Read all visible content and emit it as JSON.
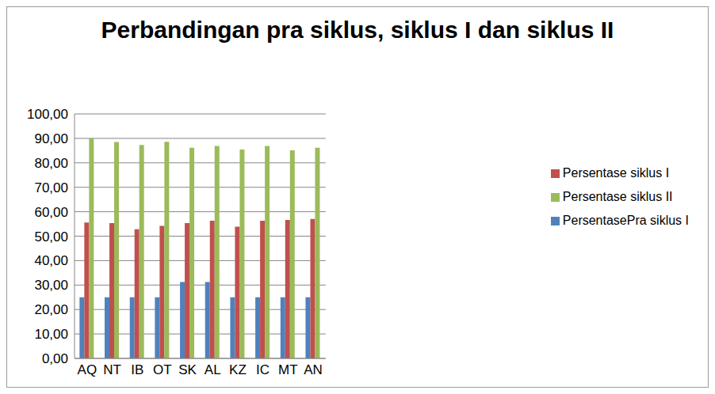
{
  "chart_data": {
    "type": "bar",
    "title": "Perbandingan pra siklus, siklus I dan siklus II",
    "categories": [
      "AQ",
      "NT",
      "IB",
      "OT",
      "SK",
      "AL",
      "KZ",
      "IC",
      "MT",
      "AN"
    ],
    "series": [
      {
        "name": "PersentasePra siklus I",
        "color": "#4f81bd",
        "values": [
          25,
          25,
          25,
          25,
          31.25,
          31.25,
          25,
          25,
          25,
          25
        ]
      },
      {
        "name": "Persentase siklus I",
        "color": "#c0504d",
        "values": [
          55.6,
          55.3,
          52.8,
          54.2,
          55.3,
          56.3,
          53.9,
          56.3,
          56.6,
          57
        ]
      },
      {
        "name": "Persentase siklus II",
        "color": "#9bbb59",
        "values": [
          90,
          88.5,
          87.3,
          88.6,
          86.2,
          86.9,
          85.4,
          86.9,
          85.1,
          86.2
        ]
      }
    ],
    "ylim": [
      0,
      100
    ],
    "yticks": [
      {
        "value": 0,
        "label": "0,00"
      },
      {
        "value": 10,
        "label": "10,00"
      },
      {
        "value": 20,
        "label": "20,00"
      },
      {
        "value": 30,
        "label": "30,00"
      },
      {
        "value": 40,
        "label": "40,00"
      },
      {
        "value": 50,
        "label": "50,00"
      },
      {
        "value": 60,
        "label": "60,00"
      },
      {
        "value": 70,
        "label": "70,00"
      },
      {
        "value": 80,
        "label": "80,00"
      },
      {
        "value": 90,
        "label": "90,00"
      },
      {
        "value": 100,
        "label": "100,00"
      }
    ],
    "grid": true,
    "legend": "right"
  }
}
